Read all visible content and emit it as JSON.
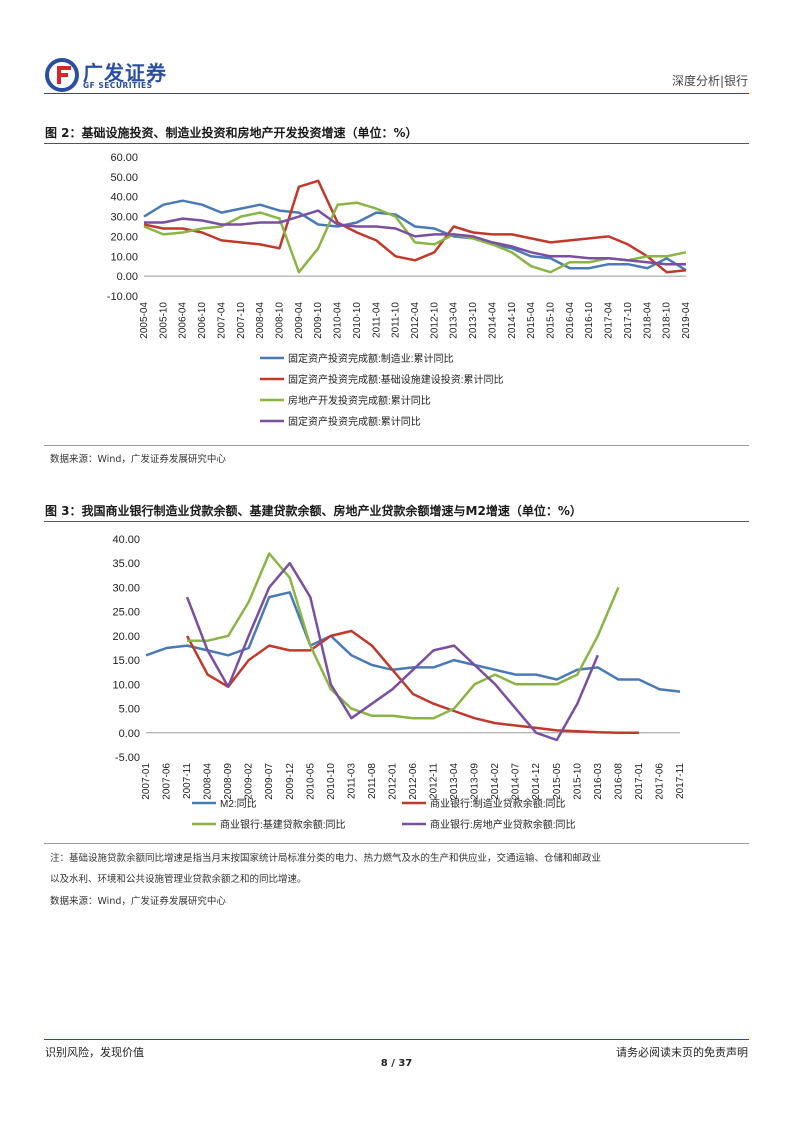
{
  "header": {
    "logo_cn": "广发证券",
    "logo_en": "GF SECURITIES",
    "section": "深度分析|银行"
  },
  "figure2": {
    "title": "图 2：基础设施投资、制造业投资和房地产开发投资增速（单位：%）",
    "source": "数据来源：Wind，广发证券发展研究中心"
  },
  "figure3": {
    "title": "图 3：我国商业银行制造业贷款余额、基建贷款余额、房地产业贷款余额增速与M2增速（单位：%）",
    "note_line1": "注：基础设施贷款余额同比增速是指当月末按国家统计局标准分类的电力、热力燃气及水的生产和供应业，交通运输、仓储和邮政业",
    "note_line2": "以及水利、环境和公共设施管理业贷款余额之和的同比增速。",
    "source": "数据来源：Wind，广发证券发展研究中心"
  },
  "footer": {
    "left": "识别风险，发现价值",
    "page": "8 / 37",
    "right": "请务必阅读末页的免责声明"
  },
  "chart_data": [
    {
      "type": "line",
      "x_labels": [
        "2005-04",
        "2005-10",
        "2006-04",
        "2006-10",
        "2007-04",
        "2007-10",
        "2008-04",
        "2008-10",
        "2009-04",
        "2009-10",
        "2010-04",
        "2010-10",
        "2011-04",
        "2011-10",
        "2012-04",
        "2012-10",
        "2013-04",
        "2013-10",
        "2014-04",
        "2014-10",
        "2015-04",
        "2015-10",
        "2016-04",
        "2016-10",
        "2017-04",
        "2017-10",
        "2018-04",
        "2018-10",
        "2019-04"
      ],
      "y_ticks": [
        "60.00",
        "50.00",
        "40.00",
        "30.00",
        "20.00",
        "10.00",
        "0.00",
        "-10.00"
      ],
      "ylim": [
        -10,
        60
      ],
      "series": [
        {
          "name": "固定资产投资完成额:制造业:累计同比",
          "color": "#4a7ab5",
          "values": [
            30,
            36,
            38,
            36,
            32,
            34,
            36,
            33,
            32,
            26,
            25,
            27,
            32,
            31,
            25,
            24,
            20,
            19,
            16,
            14,
            10,
            9,
            4,
            4,
            6,
            6,
            4,
            9,
            3
          ]
        },
        {
          "name": "固定资产投资完成额:基础设施建设投资:累计同比",
          "color": "#c0392b",
          "values": [
            26,
            24,
            24,
            22,
            18,
            17,
            16,
            14,
            45,
            48,
            27,
            22,
            18,
            10,
            8,
            12,
            25,
            22,
            21,
            21,
            19,
            17,
            18,
            19,
            20,
            16,
            10,
            2,
            3
          ]
        },
        {
          "name": "房地产开发投资完成额:累计同比",
          "color": "#8ab545",
          "values": [
            25,
            21,
            22,
            24,
            25,
            30,
            32,
            29,
            2,
            14,
            36,
            37,
            34,
            30,
            17,
            16,
            21,
            19,
            16,
            12,
            5,
            2,
            7,
            7,
            9,
            8,
            10,
            10,
            12
          ]
        },
        {
          "name": "固定资产投资完成额:累计同比",
          "color": "#7b4fa0",
          "values": [
            27,
            27,
            29,
            28,
            26,
            26,
            27,
            27,
            30,
            33,
            26,
            25,
            25,
            24,
            20,
            21,
            21,
            20,
            17,
            15,
            12,
            10,
            10,
            9,
            9,
            8,
            7,
            6,
            6
          ]
        }
      ]
    },
    {
      "type": "line",
      "x_labels": [
        "2007-01",
        "2007-06",
        "2007-11",
        "2008-04",
        "2008-09",
        "2009-02",
        "2009-07",
        "2009-12",
        "2010-05",
        "2010-10",
        "2011-03",
        "2011-08",
        "2012-01",
        "2012-06",
        "2012-11",
        "2013-04",
        "2013-09",
        "2014-02",
        "2014-07",
        "2014-12",
        "2015-05",
        "2015-10",
        "2016-03",
        "2016-08",
        "2017-01",
        "2017-06",
        "2017-11"
      ],
      "y_ticks": [
        "40.00",
        "35.00",
        "30.00",
        "25.00",
        "20.00",
        "15.00",
        "10.00",
        "5.00",
        "0.00",
        "-5.00"
      ],
      "ylim": [
        -5,
        40
      ],
      "series": [
        {
          "name": "M2:同比",
          "color": "#4a7ab5",
          "values": [
            16,
            17.5,
            18,
            17,
            16,
            17.5,
            28,
            29,
            18,
            20,
            16,
            14,
            13,
            13.5,
            13.5,
            15,
            14,
            13,
            12,
            12,
            11,
            13,
            13.5,
            11,
            11,
            9,
            8.5
          ]
        },
        {
          "name": "商业银行:制造业贷款余额:同比",
          "color": "#c0392b",
          "values": [
            null,
            null,
            20,
            12,
            9.5,
            15,
            18,
            17,
            17,
            20,
            21,
            18,
            13,
            8,
            6,
            4.5,
            3,
            2,
            1.5,
            1,
            0.5,
            0.3,
            0.1,
            0,
            0,
            null,
            null
          ]
        },
        {
          "name": "商业银行:基建贷款余额:同比",
          "color": "#8ab545",
          "values": [
            null,
            null,
            19,
            19,
            20,
            27,
            37,
            32,
            18,
            9,
            5,
            3.5,
            3.5,
            3,
            3,
            5,
            10,
            12,
            10,
            10,
            10,
            12,
            20,
            30,
            null,
            null,
            null
          ]
        },
        {
          "name": "商业银行:房地产业贷款余额:同比",
          "color": "#7b4fa0",
          "values": [
            null,
            null,
            28,
            17,
            9.5,
            20,
            30,
            35,
            28,
            10,
            3,
            6,
            9,
            13,
            17,
            18,
            14,
            10,
            5,
            0,
            -1.5,
            6,
            16,
            null,
            null,
            null,
            null
          ]
        }
      ]
    }
  ]
}
